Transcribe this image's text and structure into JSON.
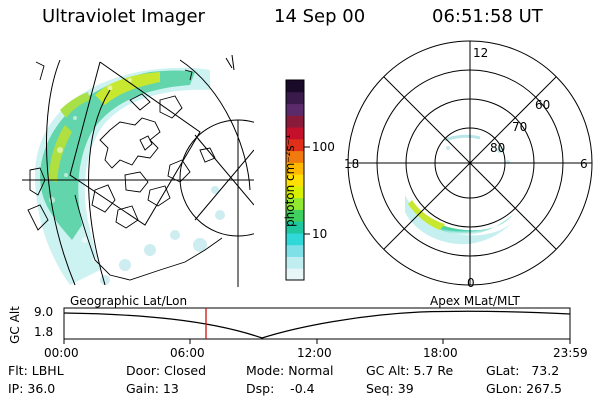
{
  "header": {
    "title": "Ultraviolet Imager",
    "date": "14 Sep 00",
    "time": "06:51:58 UT"
  },
  "colorbar": {
    "unit_label": "photon cm⁻²s⁻¹",
    "ticks": [
      "100",
      "10"
    ],
    "colors_top_to_bottom": [
      "#1a0a2a",
      "#3a1a4a",
      "#5a2a6a",
      "#8a1a3a",
      "#c4102a",
      "#e0301a",
      "#f07a10",
      "#ffb800",
      "#ffe000",
      "#d8f000",
      "#90e830",
      "#40d060",
      "#20c8a0",
      "#30d8d8",
      "#80e0e8",
      "#c0eef0",
      "#e8f6f8"
    ]
  },
  "polar": {
    "mlt_labels": [
      "12",
      "18",
      "6",
      "0"
    ],
    "lat_labels": [
      "60",
      "70",
      "80"
    ]
  },
  "timeline": {
    "left_label": "Geographic Lat/Lon",
    "right_label": "Apex MLat/MLT",
    "y_axis_label": "GC Alt",
    "y_ticks": [
      "9.0",
      "1.8"
    ],
    "x_ticks": [
      "00:00",
      "06:00",
      "12:00",
      "18:00",
      "23:59"
    ],
    "marker_color": "#d01010"
  },
  "info": {
    "flt": "Flt: LBHL",
    "ip": "IP: 36.0",
    "door": "Door: Closed",
    "gain": "Gain: 13",
    "mode": "Mode: Normal",
    "dsp": "Dsp:    -0.4",
    "gcalt": "GC Alt: 5.7 Re",
    "seq": "Seq: 39",
    "glat": "GLat:   73.2",
    "glon": "GLon: 267.5"
  }
}
